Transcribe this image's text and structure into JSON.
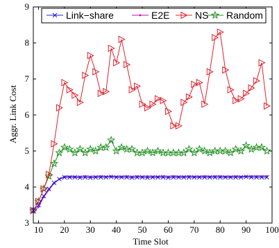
{
  "chart_data": {
    "type": "line",
    "xlabel": "Time Slot",
    "ylabel": "Aggr. Link Cost",
    "xlim": [
      8,
      100
    ],
    "ylim": [
      3,
      9
    ],
    "xticks": [
      10,
      20,
      30,
      40,
      50,
      60,
      70,
      80,
      90,
      100
    ],
    "yticks": [
      3,
      4,
      5,
      6,
      7,
      8,
      9
    ],
    "grid": false,
    "legend_position": "top",
    "x": [
      8,
      10,
      12,
      14,
      16,
      18,
      20,
      22,
      24,
      26,
      28,
      30,
      32,
      34,
      36,
      38,
      40,
      42,
      44,
      46,
      48,
      50,
      52,
      54,
      56,
      58,
      60,
      62,
      64,
      66,
      68,
      70,
      72,
      74,
      76,
      78,
      80,
      82,
      84,
      86,
      88,
      90,
      92,
      94,
      96,
      98
    ],
    "series": [
      {
        "name": "Link−share",
        "color": "#1f1fd0",
        "marker": "x",
        "values": [
          3.35,
          3.5,
          3.75,
          3.95,
          4.12,
          4.22,
          4.27,
          4.27,
          4.27,
          4.26,
          4.27,
          4.26,
          4.27,
          4.27,
          4.27,
          4.28,
          4.27,
          4.27,
          4.27,
          4.26,
          4.27,
          4.27,
          4.26,
          4.27,
          4.27,
          4.27,
          4.26,
          4.27,
          4.27,
          4.27,
          4.27,
          4.27,
          4.27,
          4.27,
          4.27,
          4.27,
          4.27,
          4.27,
          4.27,
          4.27,
          4.27,
          4.28,
          4.27,
          4.27,
          4.27,
          4.27
        ]
      },
      {
        "name": "E2E",
        "color": "#c000c0",
        "marker": "dot",
        "values": [
          3.3,
          3.45,
          3.72,
          3.92,
          4.1,
          4.22,
          4.29,
          4.29,
          4.29,
          4.29,
          4.3,
          4.29,
          4.29,
          4.3,
          4.29,
          4.3,
          4.29,
          4.29,
          4.3,
          4.29,
          4.3,
          4.29,
          4.3,
          4.29,
          4.29,
          4.3,
          4.29,
          4.3,
          4.29,
          4.29,
          4.3,
          4.29,
          4.29,
          4.3,
          4.29,
          4.3,
          4.3,
          4.29,
          4.29,
          4.3,
          4.29,
          4.3,
          4.3,
          4.3,
          4.3,
          4.3
        ]
      },
      {
        "name": "NS",
        "color": "#e0202a",
        "marker": "triangle-right",
        "values": [
          3.35,
          3.6,
          3.95,
          4.35,
          5.2,
          6.2,
          6.9,
          6.7,
          6.55,
          6.35,
          7.1,
          7.65,
          7.2,
          6.6,
          6.65,
          7.85,
          7.45,
          8.1,
          7.4,
          6.7,
          6.8,
          6.3,
          6.2,
          6.3,
          6.45,
          6.4,
          6.1,
          5.7,
          5.7,
          6.35,
          6.5,
          6.85,
          6.9,
          6.3,
          7.2,
          8.15,
          8.3,
          7.25,
          6.7,
          6.4,
          6.45,
          6.6,
          6.75,
          6.95,
          7.45,
          6.25
        ]
      },
      {
        "name": "Random",
        "color": "#1f8f1f",
        "marker": "star",
        "values": [
          3.35,
          3.6,
          3.95,
          4.3,
          4.65,
          4.95,
          5.1,
          5.05,
          4.95,
          5.05,
          4.95,
          5.05,
          5.0,
          5.1,
          5.1,
          5.3,
          5.0,
          5.1,
          5.05,
          5.05,
          4.95,
          4.95,
          5.0,
          4.95,
          5.0,
          4.95,
          4.95,
          4.95,
          4.95,
          4.95,
          5.05,
          4.95,
          5.05,
          5.0,
          4.95,
          5.0,
          5.0,
          5.0,
          4.95,
          5.05,
          5.0,
          5.15,
          5.05,
          5.1,
          5.1,
          5.0
        ]
      }
    ]
  }
}
